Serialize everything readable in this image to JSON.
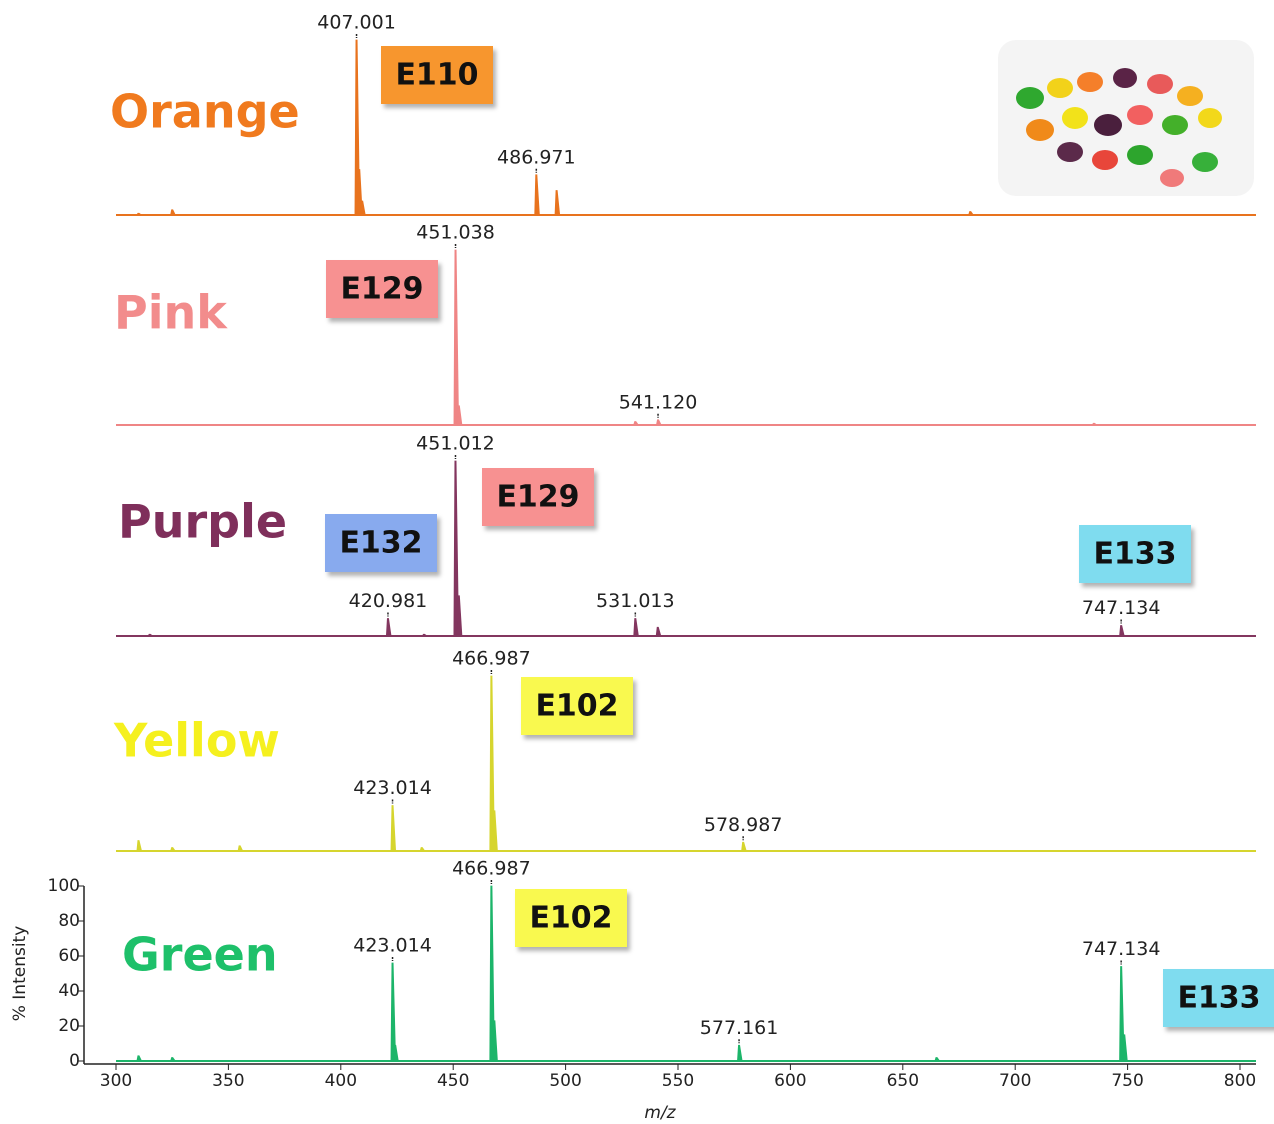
{
  "chart_data": [
    {
      "type": "stem",
      "title": "Orange",
      "color": "#e8731e",
      "title_color": "#f07a1e",
      "x": [
        310,
        325,
        407.001,
        408.2,
        409.5,
        486.971,
        496,
        680
      ],
      "values": [
        1,
        3,
        100,
        26,
        8,
        23,
        14,
        2
      ],
      "xlim": [
        300,
        800
      ],
      "ylim": [
        0,
        100
      ],
      "peak_labels": [
        {
          "value": 407.001,
          "label": "407.001"
        },
        {
          "value": 486.971,
          "label": "486.971"
        }
      ],
      "annotations": [
        {
          "text": "E110",
          "color": "#f7962f"
        }
      ]
    },
    {
      "type": "stem",
      "title": "Pink",
      "color": "#ef8585",
      "title_color": "#f28c8c",
      "x": [
        451.038,
        452.5,
        531,
        541.12,
        735
      ],
      "values": [
        100,
        11,
        2,
        3,
        1
      ],
      "xlim": [
        300,
        800
      ],
      "ylim": [
        0,
        100
      ],
      "peak_labels": [
        {
          "value": 451.038,
          "label": "451.038"
        },
        {
          "value": 541.12,
          "label": "541.120"
        }
      ],
      "annotations": [
        {
          "text": "E129",
          "color": "#f79191"
        }
      ]
    },
    {
      "type": "stem",
      "title": "Purple",
      "color": "#83365f",
      "title_color": "#7f2f5b",
      "x": [
        315,
        420.981,
        437,
        451.012,
        452.5,
        531.013,
        541,
        747.134
      ],
      "values": [
        1,
        10,
        1,
        100,
        23,
        10,
        5,
        6
      ],
      "xlim": [
        300,
        800
      ],
      "ylim": [
        0,
        100
      ],
      "peak_labels": [
        {
          "value": 451.012,
          "label": "451.012"
        },
        {
          "value": 420.981,
          "label": "420.981"
        },
        {
          "value": 531.013,
          "label": "531.013"
        },
        {
          "value": 747.134,
          "label": "747.134"
        }
      ],
      "annotations": [
        {
          "text": "E132",
          "color": "#88aaee"
        },
        {
          "text": "E129",
          "color": "#f79191"
        },
        {
          "text": "E133",
          "color": "#7fdcef"
        }
      ]
    },
    {
      "type": "stem",
      "title": "Yellow",
      "color": "#d6d52e",
      "title_color": "#f5f01e",
      "x": [
        310,
        325,
        355,
        423.014,
        436,
        466.987,
        468.3,
        578.987
      ],
      "values": [
        6,
        2,
        3,
        26,
        2,
        100,
        23,
        5
      ],
      "xlim": [
        300,
        800
      ],
      "ylim": [
        0,
        100
      ],
      "peak_labels": [
        {
          "value": 466.987,
          "label": "466.987"
        },
        {
          "value": 423.014,
          "label": "423.014"
        },
        {
          "value": 578.987,
          "label": "578.987"
        }
      ],
      "annotations": [
        {
          "text": "E102",
          "color": "#f9f950"
        }
      ]
    },
    {
      "type": "stem",
      "title": "Green",
      "color": "#1db56a",
      "title_color": "#1ec06a",
      "x": [
        310,
        325,
        423.014,
        424.2,
        466.987,
        468.3,
        577.161,
        665,
        747.134,
        748.5
      ],
      "values": [
        3,
        2,
        56,
        9,
        100,
        23,
        9,
        2,
        54,
        15
      ],
      "xlim": [
        300,
        800
      ],
      "ylim": [
        0,
        100
      ],
      "xticks": [
        300,
        350,
        400,
        450,
        500,
        550,
        600,
        650,
        700,
        750,
        800
      ],
      "yticks": [
        0,
        20,
        40,
        60,
        80,
        100
      ],
      "xlabel": "m/z",
      "ylabel": "% Intensity",
      "peak_labels": [
        {
          "value": 466.987,
          "label": "466.987"
        },
        {
          "value": 423.014,
          "label": "423.014"
        },
        {
          "value": 577.161,
          "label": "577.161"
        },
        {
          "value": 747.134,
          "label": "747.134"
        }
      ],
      "annotations": [
        {
          "text": "E102",
          "color": "#f9f950"
        },
        {
          "text": "E133",
          "color": "#7fdcef"
        }
      ]
    }
  ]
}
